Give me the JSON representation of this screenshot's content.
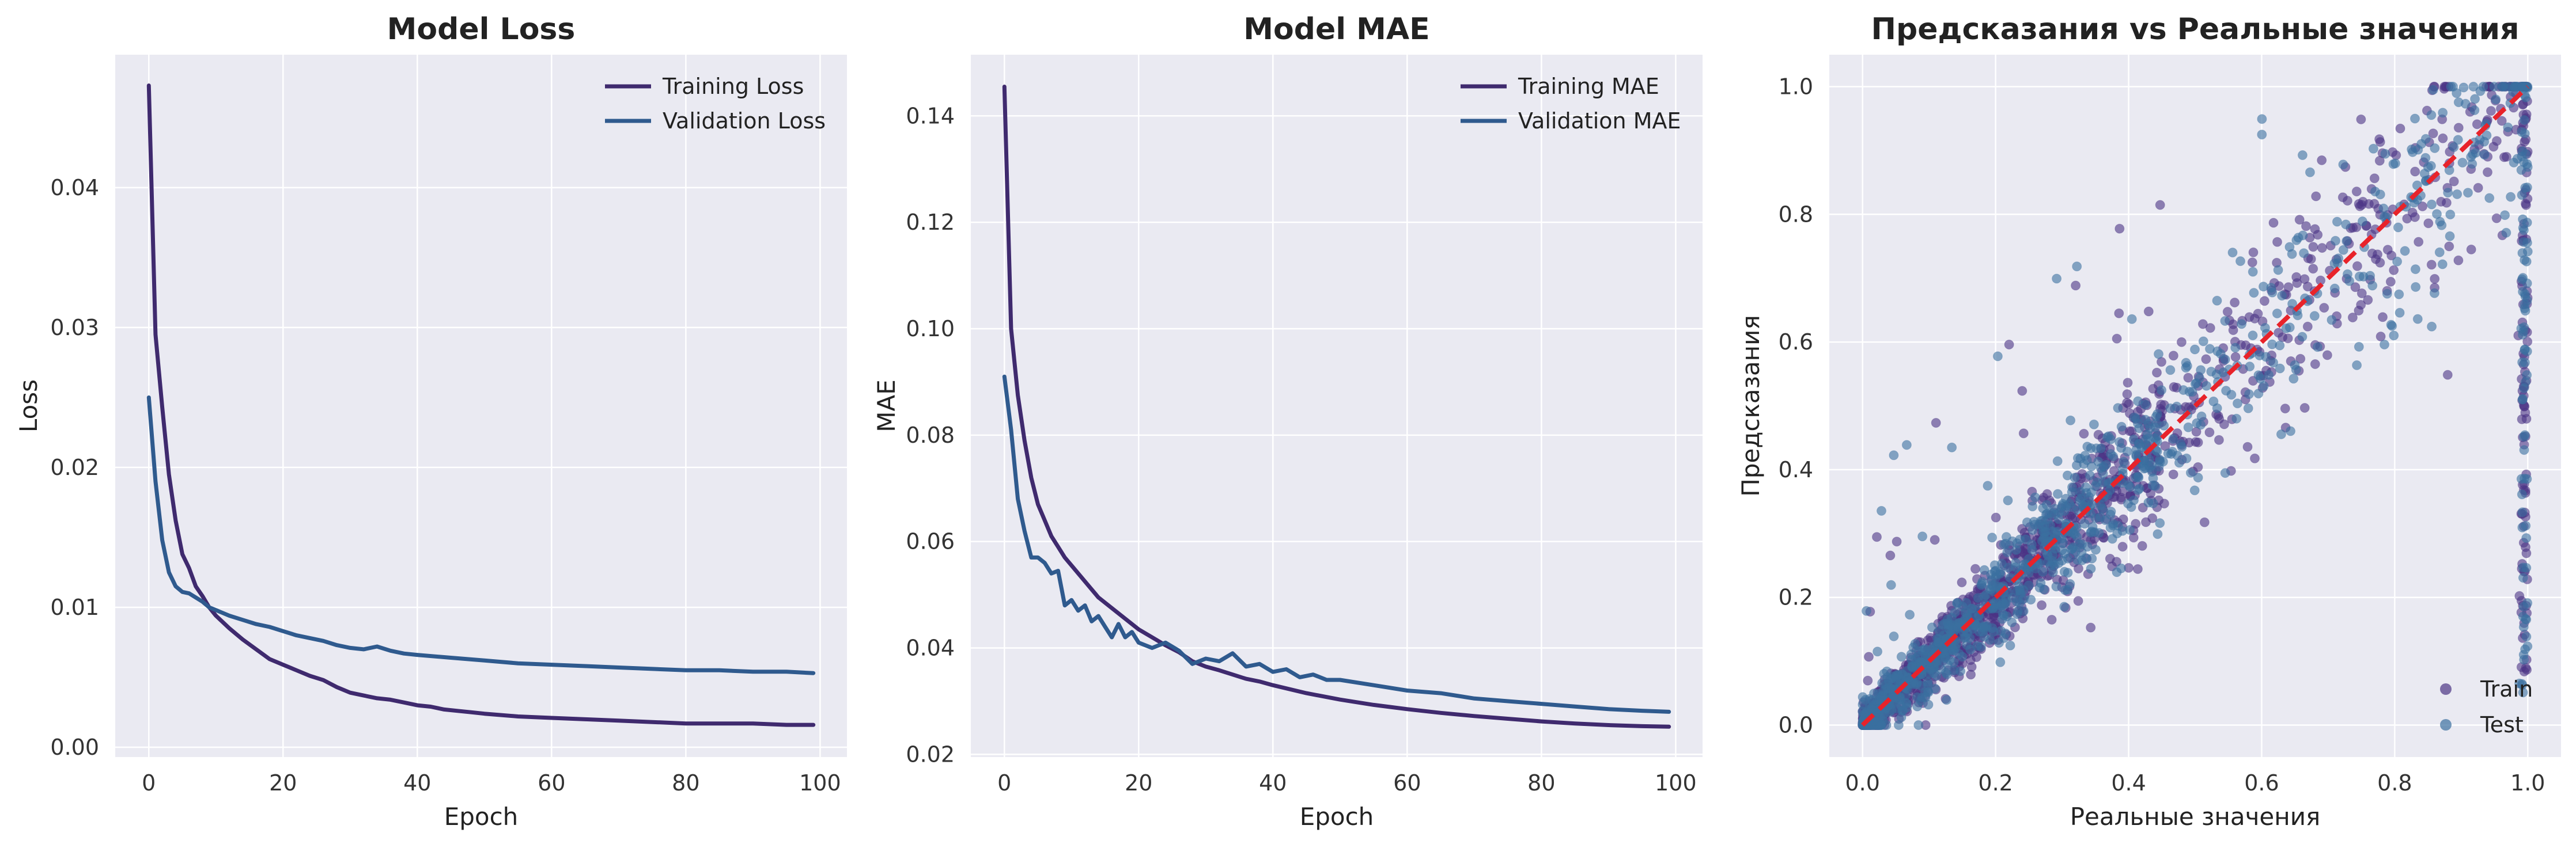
{
  "chart_data": [
    {
      "type": "line",
      "title": "Model Loss",
      "xlabel": "Epoch",
      "ylabel": "Loss",
      "xlim": [
        -5,
        104
      ],
      "ylim": [
        -0.0007,
        0.0495
      ],
      "xticks": [
        0,
        20,
        40,
        60,
        80,
        100
      ],
      "yticks": [
        0.0,
        0.01,
        0.02,
        0.03,
        0.04
      ],
      "ytick_labels": [
        "0.00",
        "0.01",
        "0.02",
        "0.03",
        "0.04"
      ],
      "grid": true,
      "legend_position": "top-right",
      "series": [
        {
          "name": "Training Loss",
          "color": "#3f2a6e",
          "x": [
            0,
            1,
            2,
            3,
            4,
            5,
            6,
            7,
            8,
            9,
            10,
            12,
            14,
            16,
            18,
            20,
            22,
            24,
            26,
            28,
            30,
            32,
            34,
            36,
            38,
            40,
            42,
            44,
            46,
            48,
            50,
            55,
            60,
            65,
            70,
            75,
            80,
            85,
            90,
            95,
            99
          ],
          "values": [
            0.0473,
            0.0295,
            0.0243,
            0.0195,
            0.0162,
            0.0138,
            0.0128,
            0.0115,
            0.0108,
            0.01,
            0.0094,
            0.0085,
            0.0077,
            0.007,
            0.0063,
            0.0059,
            0.0055,
            0.0051,
            0.0048,
            0.0043,
            0.0039,
            0.0037,
            0.0035,
            0.0034,
            0.0032,
            0.003,
            0.0029,
            0.0027,
            0.0026,
            0.0025,
            0.0024,
            0.0022,
            0.0021,
            0.002,
            0.0019,
            0.0018,
            0.0017,
            0.0017,
            0.0017,
            0.0016,
            0.0016
          ]
        },
        {
          "name": "Validation Loss",
          "color": "#2f5a8e",
          "x": [
            0,
            1,
            2,
            3,
            4,
            5,
            6,
            7,
            8,
            9,
            10,
            12,
            14,
            16,
            18,
            20,
            22,
            24,
            26,
            28,
            30,
            32,
            34,
            36,
            38,
            40,
            45,
            50,
            55,
            60,
            65,
            70,
            75,
            80,
            85,
            90,
            95,
            99
          ],
          "values": [
            0.025,
            0.019,
            0.0148,
            0.0125,
            0.0115,
            0.0111,
            0.011,
            0.0107,
            0.0104,
            0.01,
            0.0098,
            0.0094,
            0.0091,
            0.0088,
            0.0086,
            0.0083,
            0.008,
            0.0078,
            0.0076,
            0.0073,
            0.0071,
            0.007,
            0.0072,
            0.0069,
            0.0067,
            0.0066,
            0.0064,
            0.0062,
            0.006,
            0.0059,
            0.0058,
            0.0057,
            0.0056,
            0.0055,
            0.0055,
            0.0054,
            0.0054,
            0.0053
          ]
        }
      ]
    },
    {
      "type": "line",
      "title": "Model MAE",
      "xlabel": "Epoch",
      "ylabel": "MAE",
      "xlim": [
        -5,
        104
      ],
      "ylim": [
        0.0195,
        0.1515
      ],
      "xticks": [
        0,
        20,
        40,
        60,
        80,
        100
      ],
      "yticks": [
        0.02,
        0.04,
        0.06,
        0.08,
        0.1,
        0.12,
        0.14
      ],
      "ytick_labels": [
        "0.02",
        "0.04",
        "0.06",
        "0.08",
        "0.10",
        "0.12",
        "0.14"
      ],
      "grid": true,
      "legend_position": "top-right",
      "series": [
        {
          "name": "Training MAE",
          "color": "#3f2a6e",
          "x": [
            0,
            1,
            2,
            3,
            4,
            5,
            6,
            7,
            8,
            9,
            10,
            12,
            14,
            16,
            18,
            20,
            22,
            24,
            26,
            28,
            30,
            32,
            34,
            36,
            38,
            40,
            45,
            50,
            55,
            60,
            65,
            70,
            75,
            80,
            85,
            90,
            95,
            99
          ],
          "values": [
            0.1455,
            0.1,
            0.0875,
            0.079,
            0.072,
            0.067,
            0.064,
            0.061,
            0.059,
            0.057,
            0.0555,
            0.0525,
            0.0495,
            0.0475,
            0.0455,
            0.0435,
            0.042,
            0.0405,
            0.0392,
            0.0375,
            0.0365,
            0.0358,
            0.035,
            0.0342,
            0.0337,
            0.033,
            0.0315,
            0.0303,
            0.0293,
            0.0285,
            0.0278,
            0.0272,
            0.0267,
            0.0262,
            0.0258,
            0.0255,
            0.0253,
            0.0252
          ]
        },
        {
          "name": "Validation MAE",
          "color": "#2f5a8e",
          "x": [
            0,
            1,
            2,
            3,
            4,
            5,
            6,
            7,
            8,
            9,
            10,
            11,
            12,
            13,
            14,
            15,
            16,
            17,
            18,
            19,
            20,
            22,
            24,
            26,
            28,
            30,
            32,
            34,
            36,
            38,
            40,
            42,
            44,
            46,
            48,
            50,
            55,
            60,
            65,
            70,
            75,
            80,
            85,
            90,
            95,
            99
          ],
          "values": [
            0.091,
            0.081,
            0.068,
            0.062,
            0.057,
            0.057,
            0.056,
            0.054,
            0.0545,
            0.048,
            0.049,
            0.047,
            0.048,
            0.045,
            0.046,
            0.044,
            0.042,
            0.0445,
            0.042,
            0.043,
            0.041,
            0.04,
            0.041,
            0.0395,
            0.037,
            0.038,
            0.0375,
            0.039,
            0.0365,
            0.037,
            0.0355,
            0.036,
            0.0345,
            0.035,
            0.034,
            0.034,
            0.033,
            0.032,
            0.0315,
            0.0305,
            0.03,
            0.0295,
            0.029,
            0.0285,
            0.0282,
            0.028
          ]
        }
      ]
    },
    {
      "type": "scatter",
      "title": "Предсказания vs Реальные значения",
      "xlabel": "Реальные значения",
      "ylabel": "Предсказания",
      "xlim": [
        -0.05,
        1.05
      ],
      "ylim": [
        -0.05,
        1.05
      ],
      "xticks": [
        0.0,
        0.2,
        0.4,
        0.6,
        0.8,
        1.0
      ],
      "yticks": [
        0.0,
        0.2,
        0.4,
        0.6,
        0.8,
        1.0
      ],
      "tick_labels": [
        "0.0",
        "0.2",
        "0.4",
        "0.6",
        "0.8",
        "1.0"
      ],
      "grid": true,
      "legend_position": "bottom-right",
      "reference_line": {
        "x": [
          0,
          1
        ],
        "y": [
          0,
          1
        ],
        "color": "#e8232a",
        "style": "dashed"
      },
      "series": [
        {
          "name": "Train",
          "color": "#4b3485",
          "opacity": 0.6,
          "approx_points": 1400
        },
        {
          "name": "Test",
          "color": "#3b6fa0",
          "opacity": 0.6,
          "approx_points": 1100
        }
      ]
    }
  ]
}
